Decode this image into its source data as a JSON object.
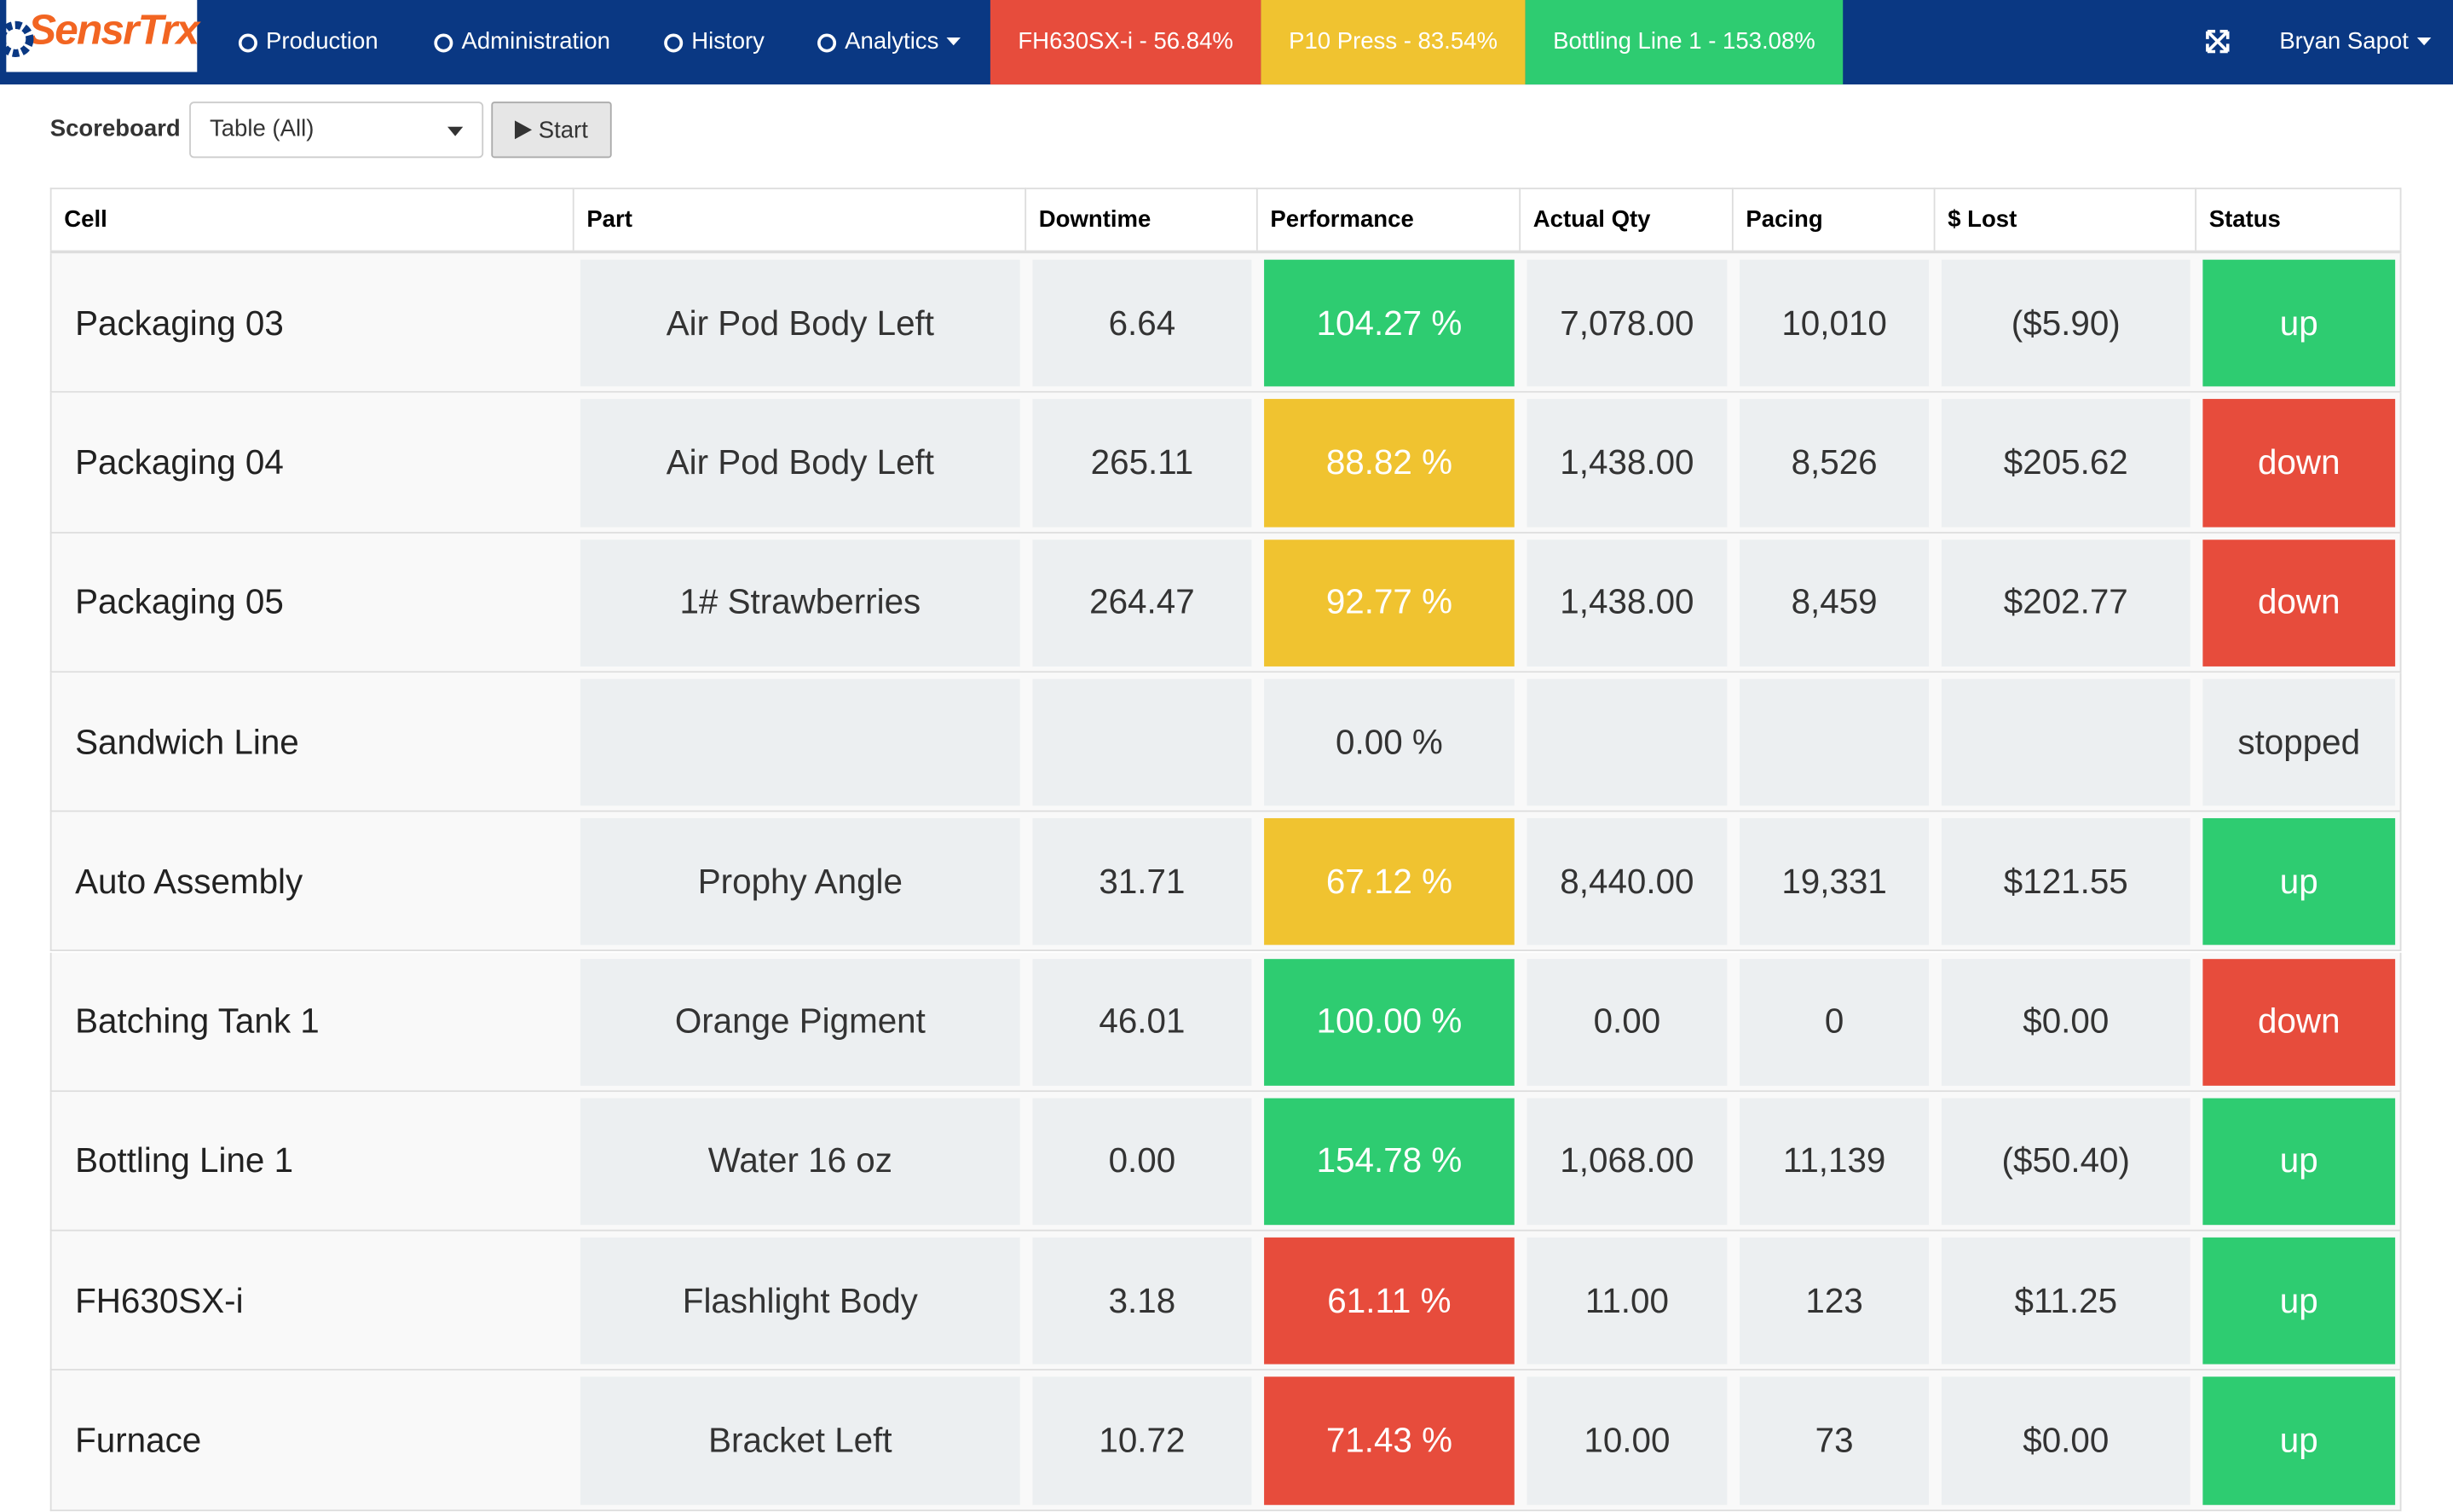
{
  "header": {
    "logo": "SensrTrx",
    "nav": [
      "Production",
      "Administration",
      "History",
      "Analytics"
    ],
    "alerts": [
      {
        "label": "FH630SX-i - 56.84%",
        "color": "#e74c3c"
      },
      {
        "label": "P10 Press - 83.54%",
        "color": "#f0c330"
      },
      {
        "label": "Bottling Line 1 - 153.08%",
        "color": "#2ecc71"
      }
    ],
    "user": "Bryan Sapot"
  },
  "toolbar": {
    "label": "Scoreboard",
    "select": "Table (All)",
    "button": "Start"
  },
  "table": {
    "columns": [
      "Cell",
      "Part",
      "Downtime",
      "Performance",
      "Actual Qty",
      "Pacing",
      "$ Lost",
      "Status"
    ],
    "rows": [
      {
        "cells": [
          "Packaging 03",
          "Air Pod Body Left",
          "6.64",
          "104.27 %",
          "7,078.00",
          "10,010",
          "($5.90)",
          "up"
        ],
        "perf_color": "#2ecc71",
        "status_color": "#2ecc71"
      },
      {
        "cells": [
          "Packaging 04",
          "Air Pod Body Left",
          "265.11",
          "88.82 %",
          "1,438.00",
          "8,526",
          "$205.62",
          "down"
        ],
        "perf_color": "#f0c330",
        "status_color": "#e74c3c"
      },
      {
        "cells": [
          "Packaging 05",
          "1# Strawberries",
          "264.47",
          "92.77 %",
          "1,438.00",
          "8,459",
          "$202.77",
          "down"
        ],
        "perf_color": "#f0c330",
        "status_color": "#e74c3c"
      },
      {
        "cells": [
          "Sandwich Line",
          null,
          null,
          "0.00 %",
          null,
          null,
          null,
          "stopped"
        ],
        "perf_color": null,
        "status_color": null
      },
      {
        "cells": [
          "Auto Assembly",
          "Prophy Angle",
          "31.71",
          "67.12 %",
          "8,440.00",
          "19,331",
          "$121.55",
          "up"
        ],
        "perf_color": "#f0c330",
        "status_color": "#2ecc71"
      },
      {
        "cells": [
          "Batching Tank 1",
          "Orange Pigment",
          "46.01",
          "100.00 %",
          "0.00",
          "0",
          "$0.00",
          "down"
        ],
        "perf_color": "#2ecc71",
        "status_color": "#e74c3c"
      },
      {
        "cells": [
          "Bottling Line 1",
          "Water 16 oz",
          "0.00",
          "154.78 %",
          "1,068.00",
          "11,139",
          "($50.40)",
          "up"
        ],
        "perf_color": "#2ecc71",
        "status_color": "#2ecc71"
      },
      {
        "cells": [
          "FH630SX-i",
          "Flashlight Body",
          "3.18",
          "61.11 %",
          "11.00",
          "123",
          "$11.25",
          "up"
        ],
        "perf_color": "#e74c3c",
        "status_color": "#2ecc71"
      },
      {
        "cells": [
          "Furnace",
          "Bracket Left",
          "10.72",
          "71.43 %",
          "10.00",
          "73",
          "$0.00",
          "up"
        ],
        "perf_color": "#e74c3c",
        "status_color": "#2ecc71"
      }
    ]
  }
}
